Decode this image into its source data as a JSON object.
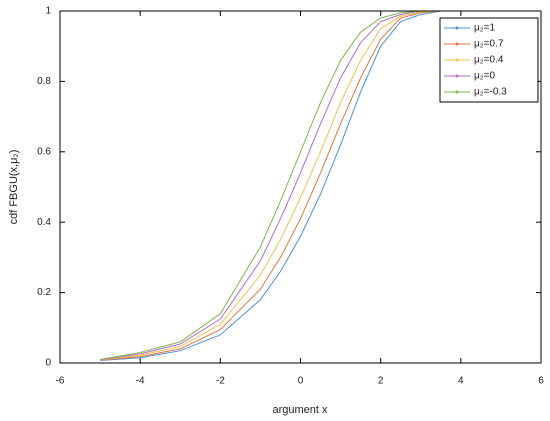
{
  "chart_data": {
    "type": "line",
    "xlabel": "argument x",
    "ylabel": "cdf FBGU(x,μ₂)",
    "x": [
      -5,
      -4,
      -3,
      -2,
      -1,
      -0.5,
      0,
      0.5,
      1,
      1.5,
      2,
      2.5,
      3,
      3.5,
      4,
      5
    ],
    "series": [
      {
        "name": "μ₂=1",
        "color": "#4a90d9",
        "values": [
          0.007,
          0.015,
          0.035,
          0.08,
          0.18,
          0.26,
          0.36,
          0.48,
          0.62,
          0.77,
          0.9,
          0.97,
          0.99,
          1,
          1,
          1
        ]
      },
      {
        "name": "μ₂=0.7",
        "color": "#e8743b",
        "values": [
          0.008,
          0.018,
          0.04,
          0.095,
          0.21,
          0.3,
          0.41,
          0.54,
          0.68,
          0.81,
          0.92,
          0.98,
          0.995,
          1,
          1,
          1
        ]
      },
      {
        "name": "μ₂=0.4",
        "color": "#f2c14e",
        "values": [
          0.008,
          0.022,
          0.047,
          0.11,
          0.25,
          0.35,
          0.47,
          0.6,
          0.74,
          0.86,
          0.95,
          0.985,
          0.997,
          1,
          1,
          1
        ]
      },
      {
        "name": "μ₂=0",
        "color": "#b06ec8",
        "values": [
          0.009,
          0.026,
          0.054,
          0.125,
          0.29,
          0.41,
          0.54,
          0.68,
          0.81,
          0.91,
          0.97,
          0.99,
          1,
          1,
          1,
          1
        ]
      },
      {
        "name": "μ₂=-0.3",
        "color": "#7bb84a",
        "values": [
          0.01,
          0.03,
          0.06,
          0.14,
          0.33,
          0.46,
          0.6,
          0.74,
          0.86,
          0.94,
          0.98,
          0.995,
          1,
          1,
          1,
          1
        ]
      }
    ],
    "xlim": [
      -6,
      6
    ],
    "ylim": [
      0,
      1
    ],
    "xticks": [
      -6,
      -4,
      -2,
      0,
      2,
      4,
      6
    ],
    "yticks": [
      0,
      0.2,
      0.4,
      0.6,
      0.8,
      1
    ],
    "grid": false,
    "legend": "upper right"
  }
}
